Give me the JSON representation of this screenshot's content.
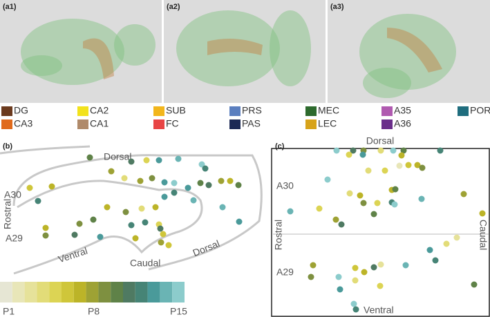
{
  "panels": {
    "a1": "(a1)",
    "a2": "(a2)",
    "a3": "(a3)",
    "b": "(b)",
    "c": "(c)"
  },
  "legend": [
    {
      "label": "DG",
      "color": "#6b3a1e"
    },
    {
      "label": "CA2",
      "color": "#f2e21c"
    },
    {
      "label": "SUB",
      "color": "#f2b61c"
    },
    {
      "label": "PRS",
      "color": "#5b7fbf"
    },
    {
      "label": "MEC",
      "color": "#2d6a2d"
    },
    {
      "label": "A35",
      "color": "#b05ab0"
    },
    {
      "label": "POR",
      "color": "#1f6d7e"
    },
    {
      "label": "CA3",
      "color": "#e06a1c"
    },
    {
      "label": "CA1",
      "color": "#b08a6a"
    },
    {
      "label": "FC",
      "color": "#e84545"
    },
    {
      "label": "PAS",
      "color": "#1c2a55"
    },
    {
      "label": "LEC",
      "color": "#d7a31a"
    },
    {
      "label": "A36",
      "color": "#6a2e8a"
    }
  ],
  "panel_b": {
    "dorsal_top": "Dorsal",
    "a30": "A30",
    "rostral": "Rostral",
    "a29": "A29",
    "ventral": "Ventral",
    "caudal": "Caudal",
    "dorsal_bottom": "Dorsal"
  },
  "panel_c": {
    "dorsal": "Dorsal",
    "a30": "A30",
    "rostral": "Rostral",
    "a29": "A29",
    "ventral": "Ventral",
    "caudal": "Caudal"
  },
  "colorbar": {
    "start": "P1",
    "middle": "P8",
    "end": "P15"
  }
}
